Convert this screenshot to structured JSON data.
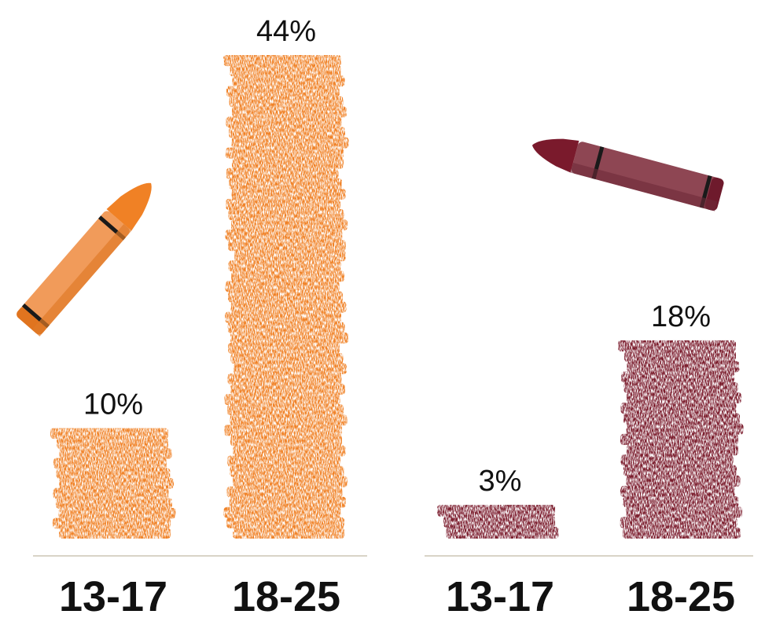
{
  "chart_data": [
    {
      "type": "bar",
      "categories": [
        "13-17",
        "18-25"
      ],
      "values": [
        10,
        44
      ],
      "value_labels": [
        "10%",
        "44%"
      ],
      "unit": "%",
      "color": "#F08125",
      "ylim": [
        0,
        44
      ]
    },
    {
      "type": "bar",
      "categories": [
        "13-17",
        "18-25"
      ],
      "values": [
        3,
        18
      ],
      "value_labels": [
        "3%",
        "18%"
      ],
      "unit": "%",
      "color": "#7A1A2C",
      "ylim": [
        0,
        44
      ]
    }
  ],
  "decorations": {
    "orange_crayon_icon": "crayon-icon",
    "maroon_crayon_icon": "crayon-icon",
    "baseline_color": "#D9D4C7",
    "crayon_stripe_color": "#1A1A1A"
  }
}
